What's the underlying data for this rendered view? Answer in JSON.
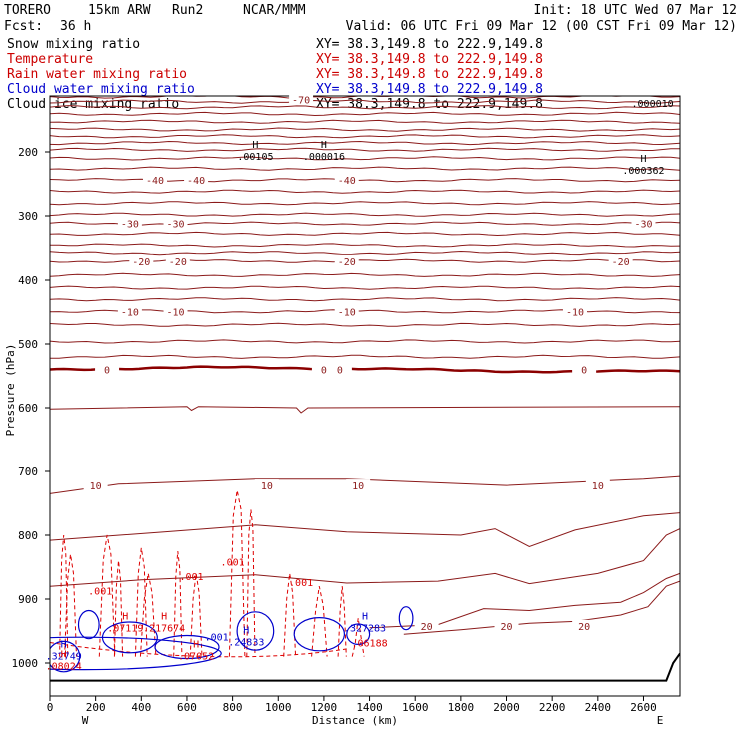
{
  "header": {
    "model": "TORERO",
    "resolution": "15km ARW",
    "run": "Run2",
    "org": "NCAR/MMM",
    "init": "Init: 18 UTC Wed 07 Mar 12",
    "fcst_label": "Fcst:",
    "fcst_value": "36 h",
    "valid": "Valid: 06 UTC Fri 09 Mar 12 (00 CST Fri 09 Mar 12)"
  },
  "legend": [
    {
      "label": "Snow mixing ratio",
      "xy": "XY=  38.3,149.8 to 222.9,149.8",
      "color": "#000000"
    },
    {
      "label": "Temperature",
      "xy": "XY=  38.3,149.8 to 222.9,149.8",
      "color": "#cc0000"
    },
    {
      "label": "Rain water mixing ratio",
      "xy": "XY=  38.3,149.8 to 222.9,149.8",
      "color": "#cc0000"
    },
    {
      "label": "Cloud water mixing ratio",
      "xy": "XY=  38.3,149.8 to 222.9,149.8",
      "color": "#0000cc"
    },
    {
      "label": "Cloud ice mixing ratio",
      "xy": "XY=  38.3,149.8 to 222.9,149.8",
      "color": "#000000"
    }
  ],
  "colors": {
    "temperature": "#8b1a1a",
    "zero_isotherm": "#8b0000",
    "rain": "#dd0000",
    "cloud_water": "#0000cc",
    "ice": "#000000",
    "terrain": "#000000"
  },
  "chart_data": {
    "type": "contour cross-section",
    "xlabel": "Distance (km)",
    "ylabel": "Pressure (hPa)",
    "x_ticks": [
      0,
      200,
      400,
      600,
      800,
      1000,
      1200,
      1400,
      1600,
      1800,
      2000,
      2200,
      2400,
      2600
    ],
    "y_ticks": [
      200,
      300,
      400,
      500,
      600,
      700,
      800,
      900,
      1000
    ],
    "xlim": [
      0,
      2760
    ],
    "ylim": [
      1015,
      100
    ],
    "x_end_labels": {
      "left": "W",
      "right": "E"
    },
    "isotherm_levels_C": [
      {
        "value": -70,
        "p": 106,
        "labels_at": [
          1100
        ]
      },
      {
        "value": -40,
        "p": 244,
        "labels_at": [
          460,
          640,
          1300
        ]
      },
      {
        "value": -30,
        "p": 312,
        "labels_at": [
          350,
          550,
          2600
        ]
      },
      {
        "value": -20,
        "p": 370,
        "labels_at": [
          400,
          560,
          1300,
          2500
        ]
      },
      {
        "value": -10,
        "p": 449,
        "labels_at": [
          350,
          550,
          1300,
          2300
        ]
      },
      {
        "value": 0,
        "p": 540,
        "labels_at": [
          250,
          1200,
          1270,
          2340
        ]
      },
      {
        "value": 10,
        "p": 722,
        "labels_at": [
          200,
          950,
          1350,
          2400
        ]
      },
      {
        "value": 20,
        "p": 942,
        "labels_at": [
          1650,
          2000,
          2340
        ]
      }
    ],
    "annotations": [
      {
        "text": "H",
        "value": ".00105",
        "x": 900,
        "p": 200
      },
      {
        "text": "H",
        "value": ".000016",
        "x": 1200,
        "p": 200
      },
      {
        "text": "H",
        "value": ".000362",
        "x": 2600,
        "p": 222
      },
      {
        "value": ".000010",
        "x": 2640,
        "p": 105
      },
      {
        "text": "H",
        "value": ".07119",
        "x": 330,
        "p": 938
      },
      {
        "text": "H",
        "value": ".217674",
        "x": 500,
        "p": 938
      },
      {
        "text": "H",
        "value": ".32749",
        "x": 60,
        "p": 982
      },
      {
        "text": "H",
        "value": ".08024",
        "x": 60,
        "p": 998
      },
      {
        "text": "H",
        "value": ".07052",
        "x": 640,
        "p": 982
      },
      {
        "text": "H",
        "value": ".24833",
        "x": 860,
        "p": 960
      },
      {
        "text": "H",
        "value": ".327283",
        "x": 1380,
        "p": 938
      },
      {
        "value": ".06188",
        "x": 1400,
        "p": 962
      }
    ],
    "rain_contour_label": ".001",
    "cloud_contour_label": ".001"
  }
}
